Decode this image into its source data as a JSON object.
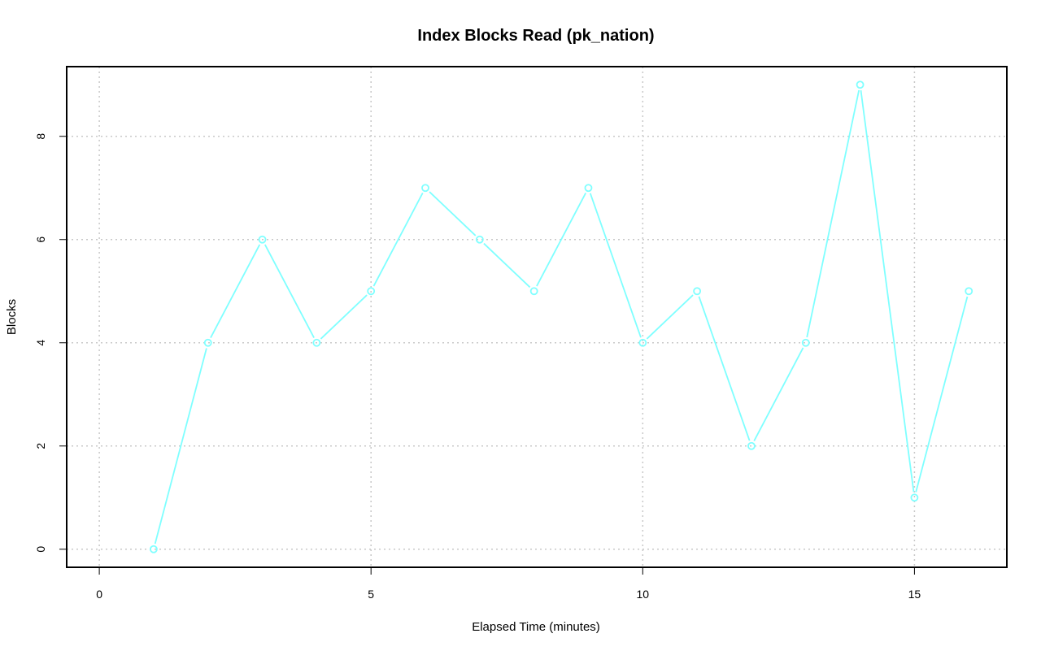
{
  "chart_data": {
    "type": "line",
    "title": "Index Blocks Read (pk_nation)",
    "xlabel": "Elapsed Time (minutes)",
    "ylabel": "Blocks",
    "xlim": [
      -0.6,
      16.7
    ],
    "ylim": [
      -0.35,
      9.35
    ],
    "xticks": [
      0,
      5,
      10,
      15
    ],
    "yticks": [
      0,
      2,
      4,
      6,
      8
    ],
    "grid": true,
    "series": [
      {
        "name": "pk_nation",
        "color": "#7fffff",
        "x": [
          1,
          2,
          3,
          4,
          5,
          6,
          7,
          8,
          9,
          10,
          11,
          12,
          13,
          14,
          15,
          16
        ],
        "values": [
          0,
          4,
          6,
          4,
          5,
          7,
          6,
          5,
          7,
          4,
          5,
          2,
          4,
          9,
          1,
          5
        ]
      }
    ]
  }
}
